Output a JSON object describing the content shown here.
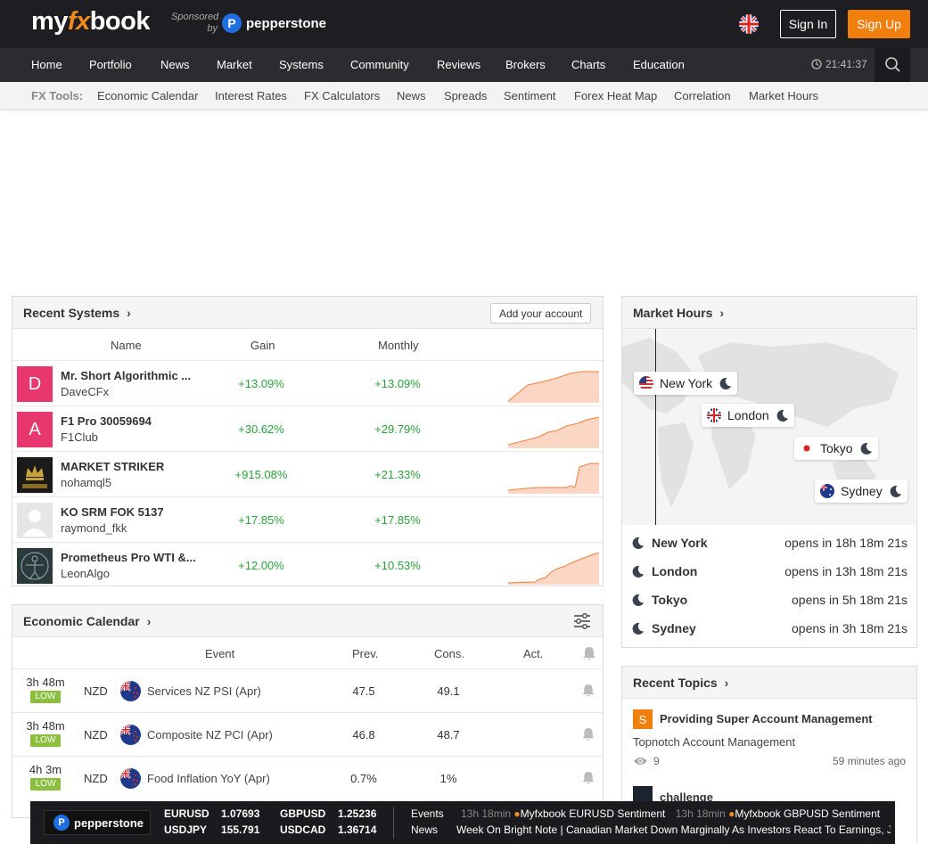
{
  "header": {
    "logo": {
      "my": "my",
      "fx": "fx",
      "book": "book"
    },
    "sponsored": "Sponsored by",
    "sponsor_name": "pepperstone",
    "signin": "Sign In",
    "signup": "Sign Up"
  },
  "nav": {
    "items": [
      "Home",
      "Portfolio",
      "News",
      "Market",
      "Systems",
      "Community",
      "Reviews",
      "Brokers",
      "Charts",
      "Education"
    ],
    "clock": "21:41:37"
  },
  "tools": {
    "label": "FX Tools:",
    "items": [
      "Economic Calendar",
      "Interest Rates",
      "FX Calculators",
      "News",
      "Spreads",
      "Sentiment",
      "Forex Heat Map",
      "Correlation",
      "Market Hours"
    ]
  },
  "recent_systems": {
    "title": "Recent Systems",
    "add_account": "Add your account",
    "columns": {
      "name": "Name",
      "gain": "Gain",
      "monthly": "Monthly"
    },
    "rows": [
      {
        "avatar": "D",
        "avatar_color": "#e8376e",
        "name": "Mr. Short Algorithmic ...",
        "user": "DaveCFx",
        "gain": "+13.09%",
        "monthly": "+13.09%"
      },
      {
        "avatar": "A",
        "avatar_color": "#e8376e",
        "name": "F1 Pro 30059694",
        "user": "F1Club",
        "gain": "+30.62%",
        "monthly": "+29.79%"
      },
      {
        "avatar": "",
        "avatar_color": "#1a1a1a",
        "name": "MARKET STRIKER",
        "user": "nohamql5",
        "gain": "+915.08%",
        "monthly": "+21.33%"
      },
      {
        "avatar": "",
        "avatar_color": "#e6e6e6",
        "name": "KO SRM FOK 5137",
        "user": "raymond_fkk",
        "gain": "+17.85%",
        "monthly": "+17.85%"
      },
      {
        "avatar": "",
        "avatar_color": "#2a3a3a",
        "name": "Prometheus Pro WTI &...",
        "user": "LeonAlgo",
        "gain": "+12.00%",
        "monthly": "+10.53%"
      }
    ]
  },
  "economic_calendar": {
    "title": "Economic Calendar",
    "columns": {
      "event": "Event",
      "prev": "Prev.",
      "cons": "Cons.",
      "act": "Act."
    },
    "rows": [
      {
        "time": "3h 48m",
        "impact": "LOW",
        "currency": "NZD",
        "event": "Services NZ PSI (Apr)",
        "prev": "47.5",
        "cons": "49.1"
      },
      {
        "time": "3h 48m",
        "impact": "LOW",
        "currency": "NZD",
        "event": "Composite NZ PCI (Apr)",
        "prev": "46.8",
        "cons": "48.7"
      },
      {
        "time": "4h 3m",
        "impact": "LOW",
        "currency": "NZD",
        "event": "Food Inflation YoY (Apr)",
        "prev": "0.7%",
        "cons": "1%"
      }
    ]
  },
  "market_hours": {
    "title": "Market Hours",
    "map_tags": [
      "New York",
      "London",
      "Tokyo",
      "Sydney"
    ],
    "rows": [
      {
        "city": "New York",
        "opens": "opens in 18h 18m 21s"
      },
      {
        "city": "London",
        "opens": "opens in 13h 18m 21s"
      },
      {
        "city": "Tokyo",
        "opens": "opens in 5h 18m 21s"
      },
      {
        "city": "Sydney",
        "opens": "opens in 3h 18m 21s"
      }
    ]
  },
  "recent_topics": {
    "title": "Recent Topics",
    "items": [
      {
        "icon_letter": "S",
        "title": "Providing Super Account Management",
        "subtitle": "Topnotch Account Management",
        "views": "9",
        "time": "59 minutes ago"
      },
      {
        "title": "challenge"
      }
    ]
  },
  "ticker": {
    "brand": "pepperstone",
    "quotes": [
      {
        "pair": "EURUSD",
        "price": "1.07693"
      },
      {
        "pair": "GBPUSD",
        "price": "1.25236"
      },
      {
        "pair": "USDJPY",
        "price": "155.791"
      },
      {
        "pair": "USDCAD",
        "price": "1.36714"
      }
    ],
    "events_label": "Events",
    "news_label": "News",
    "events_text": [
      {
        "time": "13h 18min",
        "text": "Myfxbook EURUSD Sentiment"
      },
      {
        "time": "13h 18min",
        "text": "Myfxbook GBPUSD Sentiment"
      }
    ],
    "news_text": "Week On Bright Note | Canadian Market Down Marginally As Investors React To Earnings, Jo"
  },
  "colors": {
    "accent": "#f07f0e",
    "gain": "#2aa23a",
    "topbar": "#1e1e22",
    "nav": "#2b2b30"
  }
}
